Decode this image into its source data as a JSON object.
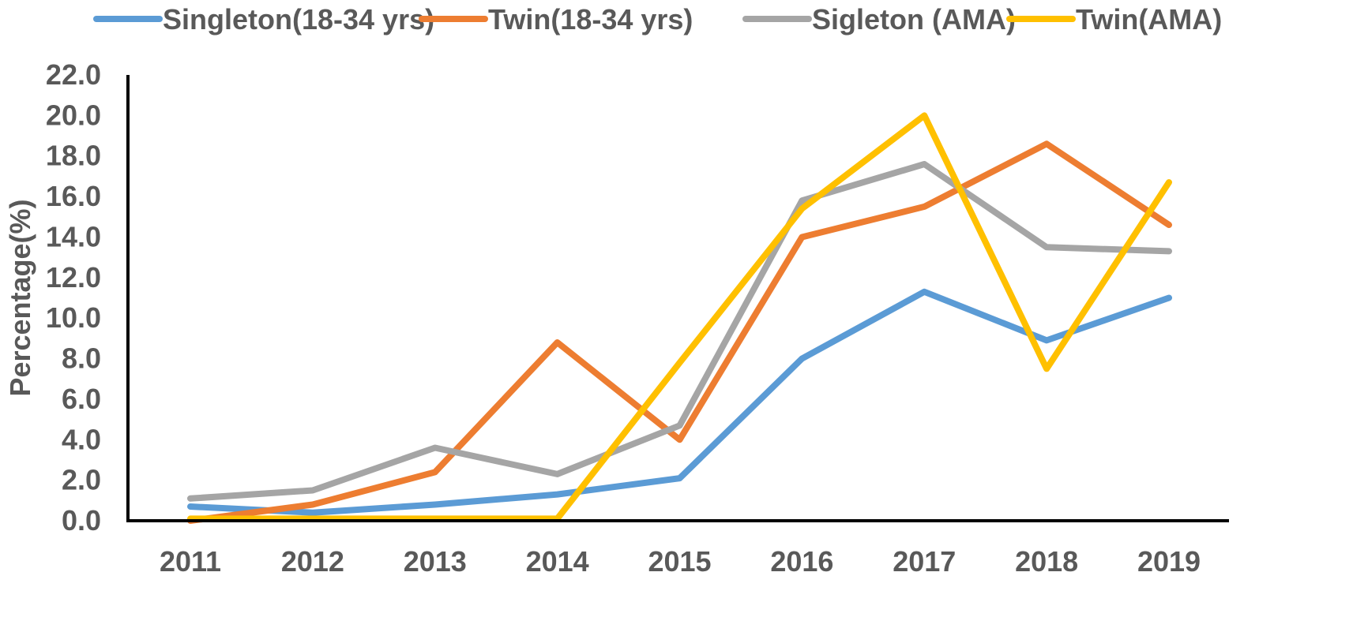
{
  "chart_data": {
    "type": "line",
    "title": "",
    "xlabel": "",
    "ylabel": "Percentage(%)",
    "ylim": [
      0,
      22
    ],
    "ystep": 2,
    "y_tick_format_decimals": 1,
    "grid": false,
    "legend_position": "top",
    "x": [
      "2011",
      "2012",
      "2013",
      "2014",
      "2015",
      "2016",
      "2017",
      "2018",
      "2019"
    ],
    "series": [
      {
        "name": "Singleton(18-34 yrs)",
        "color": "#5B9BD5",
        "values": [
          0.7,
          0.4,
          0.8,
          1.3,
          2.1,
          8.0,
          11.3,
          8.9,
          11.0
        ]
      },
      {
        "name": "Twin(18-34 yrs)",
        "color": "#ED7D31",
        "values": [
          0.0,
          0.8,
          2.4,
          8.8,
          4.0,
          14.0,
          15.5,
          18.6,
          14.6
        ]
      },
      {
        "name": "Sigleton (AMA)",
        "color": "#A5A5A5",
        "values": [
          1.1,
          1.5,
          3.6,
          2.3,
          4.7,
          15.8,
          17.6,
          13.5,
          13.3
        ]
      },
      {
        "name": "Twin(AMA)",
        "color": "#FFC000",
        "values": [
          0.1,
          0.1,
          0.1,
          0.1,
          7.8,
          15.4,
          20.0,
          7.5,
          16.7
        ]
      }
    ]
  }
}
